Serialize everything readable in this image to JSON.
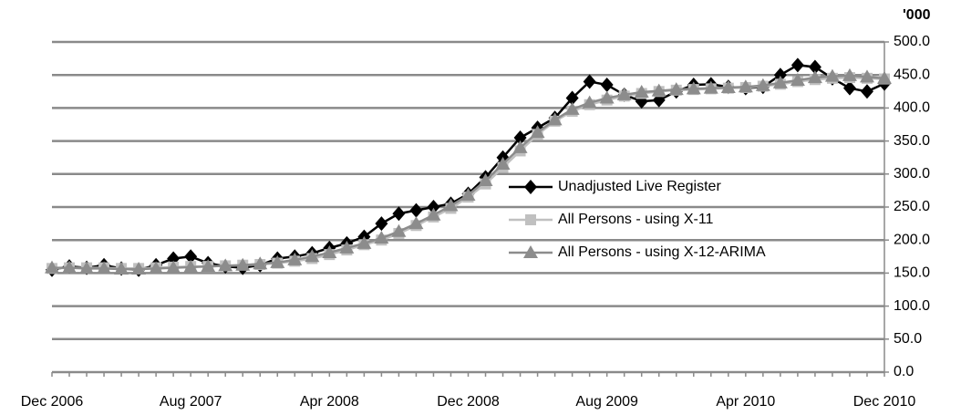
{
  "chart_data": {
    "type": "line",
    "y_unit_label": "'000",
    "categories": [
      "Dec 2006",
      null,
      null,
      null,
      null,
      null,
      null,
      null,
      "Aug 2007",
      null,
      null,
      null,
      null,
      null,
      null,
      null,
      "Apr 2008",
      null,
      null,
      null,
      null,
      null,
      null,
      null,
      "Dec 2008",
      null,
      null,
      null,
      null,
      null,
      null,
      null,
      "Aug 2009",
      null,
      null,
      null,
      null,
      null,
      null,
      null,
      "Apr 2010",
      null,
      null,
      null,
      null,
      null,
      null,
      null,
      "Dec 2010"
    ],
    "series": [
      {
        "name": "Unadjusted Live Register",
        "color": "#000000",
        "marker": "diamond",
        "values": [
          155,
          160,
          158,
          162,
          157,
          155,
          162,
          172,
          175,
          165,
          160,
          158,
          162,
          172,
          175,
          180,
          188,
          195,
          205,
          225,
          240,
          245,
          250,
          255,
          270,
          295,
          325,
          355,
          370,
          385,
          415,
          440,
          435,
          420,
          410,
          412,
          425,
          435,
          436,
          432,
          430,
          432,
          450,
          465,
          462,
          445,
          430,
          425,
          437
        ]
      },
      {
        "name": "All Persons - using X-11",
        "color": "#c0c0c0",
        "marker": "square",
        "values": [
          157,
          158,
          158,
          158,
          157,
          157,
          158,
          159,
          160,
          160,
          161,
          162,
          163,
          165,
          168,
          172,
          178,
          185,
          193,
          200,
          210,
          222,
          235,
          248,
          265,
          285,
          310,
          335,
          360,
          380,
          395,
          405,
          412,
          418,
          422,
          425,
          427,
          428,
          429,
          430,
          431,
          433,
          436,
          440,
          443,
          445,
          446,
          445,
          444
        ]
      },
      {
        "name": "All Persons - using X-12-ARIMA",
        "color": "#8c8c8c",
        "marker": "triangle",
        "values": [
          158,
          158,
          157,
          157,
          156,
          156,
          157,
          158,
          159,
          160,
          161,
          162,
          164,
          166,
          170,
          175,
          181,
          188,
          195,
          203,
          213,
          225,
          238,
          252,
          268,
          290,
          315,
          340,
          363,
          382,
          398,
          408,
          415,
          420,
          424,
          426,
          428,
          429,
          430,
          431,
          432,
          434,
          438,
          442,
          446,
          448,
          449,
          447,
          445
        ]
      }
    ],
    "ylim": [
      0,
      500
    ],
    "yticks": [
      {
        "value": 0,
        "label": "0.0"
      },
      {
        "value": 50,
        "label": "50.0"
      },
      {
        "value": 100,
        "label": "100.0"
      },
      {
        "value": 150,
        "label": "150.0"
      },
      {
        "value": 200,
        "label": "200.0"
      },
      {
        "value": 250,
        "label": "250.0"
      },
      {
        "value": 300,
        "label": "300.0"
      },
      {
        "value": 350,
        "label": "350.0"
      },
      {
        "value": 400,
        "label": "400.0"
      },
      {
        "value": 450,
        "label": "450.0"
      },
      {
        "value": 500,
        "label": "500.0"
      }
    ],
    "grid": true
  }
}
